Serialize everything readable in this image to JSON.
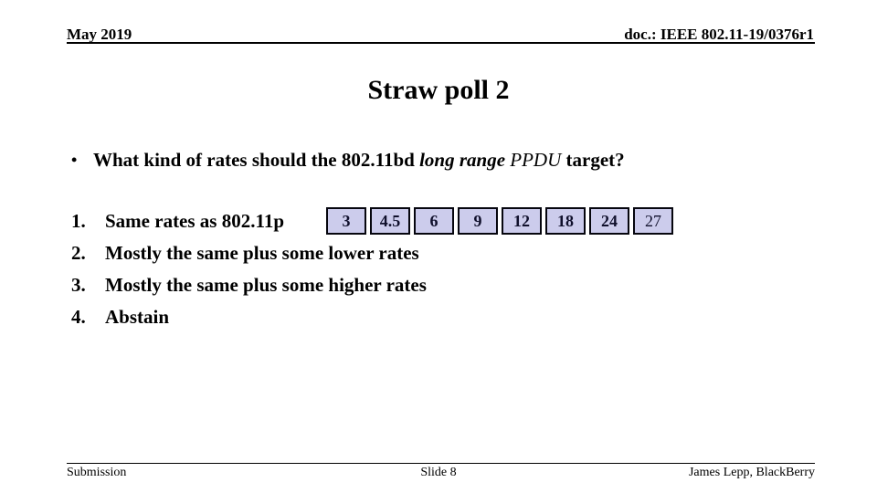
{
  "slide": {
    "header": {
      "date": "May 2019",
      "doc_id": "doc.: IEEE 802.11-19/0376r1"
    },
    "title": "Straw poll 2",
    "question": {
      "bullet": "•",
      "part1": "What kind of rates should the 802.11bd ",
      "part2_bold_italic": "long range ",
      "part3_italic": "PPDU",
      "part4": " target?"
    },
    "options": [
      {
        "number": "1.",
        "label": "Same rates as 802.11p"
      },
      {
        "number": "2.",
        "label": "Mostly the same plus some lower rates"
      },
      {
        "number": "3.",
        "label": "Mostly the same plus some higher rates"
      },
      {
        "number": "4.",
        "label": "Abstain"
      }
    ],
    "rates_table": {
      "cells": [
        {
          "value": "3",
          "bold": true
        },
        {
          "value": "4.5",
          "bold": true
        },
        {
          "value": "6",
          "bold": true
        },
        {
          "value": "9",
          "bold": true
        },
        {
          "value": "12",
          "bold": true
        },
        {
          "value": "18",
          "bold": true
        },
        {
          "value": "24",
          "bold": true
        },
        {
          "value": "27",
          "bold": false
        }
      ]
    },
    "footer": {
      "left": "Submission",
      "center": "Slide 8",
      "right": "James Lepp, BlackBerry"
    },
    "colors": {
      "cell_fill": "#ccccec",
      "cell_border": "#06060e",
      "text": "#000000",
      "background": "#ffffff"
    }
  }
}
